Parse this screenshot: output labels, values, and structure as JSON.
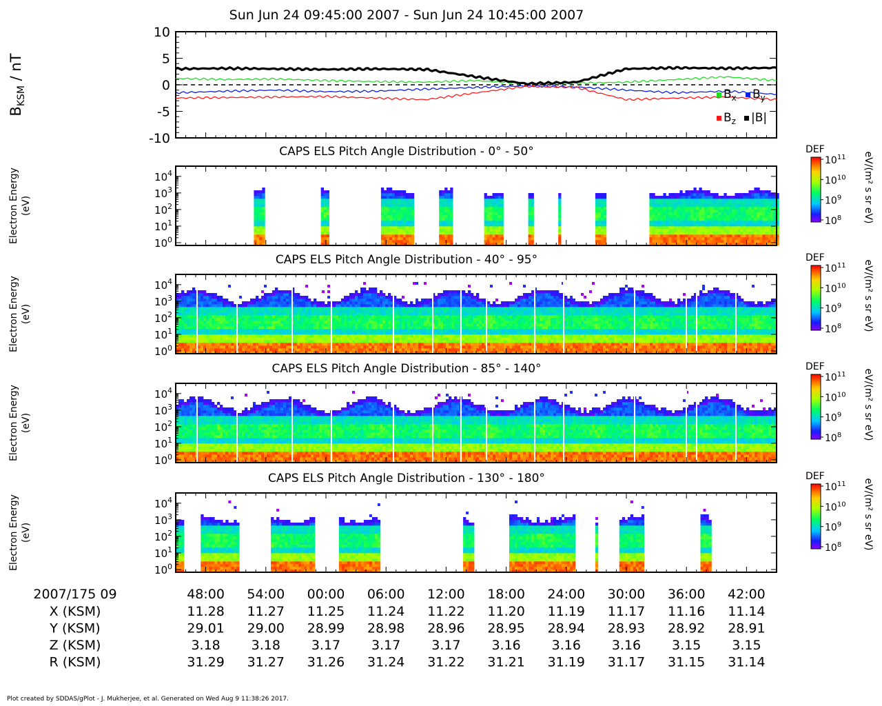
{
  "title": "Sun Jun 24 09:45:00 2007 - Sun Jun 24 10:45:00 2007",
  "footer": "Plot created by SDDAS/gPlot - J. Mukherjee, et al.  Generated on Wed Aug 9 11:38:26 2017.",
  "colors": {
    "bx": "#22dd22",
    "by": "#0a1ee6",
    "bz": "#ff1a1a",
    "bmag": "#000000"
  },
  "chart_data": [
    {
      "type": "line",
      "ylabel": "B_KSM / nT",
      "ylabel_main": "B",
      "ylabel_sub": "KSM",
      "ylabel_rest": " / nT",
      "ylim": [
        -10,
        10
      ],
      "yticks": [
        "10",
        "5",
        "0",
        "-5",
        "-10"
      ],
      "x_minutes": [
        0,
        5,
        10,
        15,
        20,
        25,
        30,
        35,
        40,
        45,
        50,
        55,
        60
      ],
      "reference_line": 0,
      "series": [
        {
          "name": "B_x",
          "legend_main": "B",
          "legend_sub": "x",
          "values": [
            1.2,
            1.0,
            1.1,
            0.8,
            0.6,
            0.5,
            0.8,
            0.2,
            0.3,
            0.5,
            1.0,
            1.5,
            0.8
          ]
        },
        {
          "name": "B_y",
          "legend_main": "B",
          "legend_sub": "y",
          "values": [
            -1.5,
            -1.2,
            -1.0,
            -1.3,
            -1.2,
            -0.8,
            -0.5,
            -0.2,
            -0.4,
            -1.0,
            -1.5,
            -1.2,
            -1.8
          ]
        },
        {
          "name": "B_z",
          "legend_main": "B",
          "legend_sub": "z",
          "values": [
            -2.5,
            -2.4,
            -2.3,
            -2.2,
            -2.5,
            -2.8,
            -1.5,
            -0.3,
            -0.5,
            -2.8,
            -2.5,
            -2.3,
            -2.8
          ]
        },
        {
          "name": "|B|",
          "legend_main": "|B|",
          "legend_sub": "",
          "values": [
            3.0,
            3.1,
            3.0,
            2.9,
            3.0,
            2.9,
            1.5,
            0.2,
            0.5,
            3.0,
            3.2,
            3.1,
            3.2
          ]
        }
      ]
    },
    {
      "type": "heatmap",
      "title": "CAPS ELS Pitch Angle Distribution - 0° - 50°",
      "ylabel_line1": "Electron Energy",
      "ylabel_line2": "(eV)",
      "yticks": [
        {
          "base": "10",
          "exp": "4"
        },
        {
          "base": "10",
          "exp": "3"
        },
        {
          "base": "10",
          "exp": "2"
        },
        {
          "base": "10",
          "exp": "1"
        },
        {
          "base": "10",
          "exp": "0"
        }
      ],
      "colorbar": {
        "label": "DEF",
        "ticks": [
          {
            "base": "10",
            "exp": "11"
          },
          {
            "base": "10",
            "exp": "10"
          },
          {
            "base": "10",
            "exp": "9"
          },
          {
            "base": "10",
            "exp": "8"
          }
        ],
        "units": "eV/(m² s sr eV)"
      },
      "data_intervals_minutes": [
        [
          7.8,
          8.8
        ],
        [
          14.5,
          15.2
        ],
        [
          20.5,
          23.8
        ],
        [
          26.3,
          27.5
        ],
        [
          30.8,
          32.5
        ],
        [
          35.2,
          35.7
        ],
        [
          38.2,
          38.4
        ],
        [
          41.9,
          42.9
        ],
        [
          47.3,
          60.0
        ]
      ]
    },
    {
      "type": "heatmap",
      "title": "CAPS ELS Pitch Angle Distribution - 40° - 95°",
      "ylabel_line1": "Electron Energy",
      "ylabel_line2": "(eV)",
      "yticks": [
        {
          "base": "10",
          "exp": "4"
        },
        {
          "base": "10",
          "exp": "3"
        },
        {
          "base": "10",
          "exp": "2"
        },
        {
          "base": "10",
          "exp": "1"
        },
        {
          "base": "10",
          "exp": "0"
        }
      ],
      "colorbar": {
        "label": "DEF",
        "ticks": [
          {
            "base": "10",
            "exp": "11"
          },
          {
            "base": "10",
            "exp": "10"
          },
          {
            "base": "10",
            "exp": "9"
          },
          {
            "base": "10",
            "exp": "8"
          }
        ],
        "units": "eV/(m² s sr eV)"
      },
      "data_intervals_minutes": [
        [
          0.0,
          60.0
        ]
      ]
    },
    {
      "type": "heatmap",
      "title": "CAPS ELS Pitch Angle Distribution - 85° - 140°",
      "ylabel_line1": "Electron Energy",
      "ylabel_line2": "(eV)",
      "yticks": [
        {
          "base": "10",
          "exp": "4"
        },
        {
          "base": "10",
          "exp": "3"
        },
        {
          "base": "10",
          "exp": "2"
        },
        {
          "base": "10",
          "exp": "1"
        },
        {
          "base": "10",
          "exp": "0"
        }
      ],
      "colorbar": {
        "label": "DEF",
        "ticks": [
          {
            "base": "10",
            "exp": "11"
          },
          {
            "base": "10",
            "exp": "10"
          },
          {
            "base": "10",
            "exp": "9"
          },
          {
            "base": "10",
            "exp": "8"
          }
        ],
        "units": "eV/(m² s sr eV)"
      },
      "data_intervals_minutes": [
        [
          0.0,
          60.0
        ]
      ]
    },
    {
      "type": "heatmap",
      "title": "CAPS ELS Pitch Angle Distribution - 130° - 180°",
      "ylabel_line1": "Electron Energy",
      "ylabel_line2": "(eV)",
      "yticks": [
        {
          "base": "10",
          "exp": "4"
        },
        {
          "base": "10",
          "exp": "3"
        },
        {
          "base": "10",
          "exp": "2"
        },
        {
          "base": "10",
          "exp": "1"
        },
        {
          "base": "10",
          "exp": "0"
        }
      ],
      "colorbar": {
        "label": "DEF",
        "ticks": [
          {
            "base": "10",
            "exp": "11"
          },
          {
            "base": "10",
            "exp": "10"
          },
          {
            "base": "10",
            "exp": "9"
          },
          {
            "base": "10",
            "exp": "8"
          }
        ],
        "units": "eV/(m² s sr eV)"
      },
      "data_intervals_minutes": [
        [
          0.0,
          0.6
        ],
        [
          2.5,
          6.2
        ],
        [
          9.5,
          13.8
        ],
        [
          16.3,
          20.2
        ],
        [
          28.7,
          29.6
        ],
        [
          33.3,
          39.8
        ],
        [
          41.9,
          42.1
        ],
        [
          44.3,
          46.6
        ],
        [
          52.4,
          53.5
        ]
      ]
    }
  ],
  "x_axis": {
    "date_label": "2007/175 09",
    "ticks": [
      "48:00",
      "54:00",
      "00:00",
      "06:00",
      "12:00",
      "18:00",
      "24:00",
      "30:00",
      "36:00",
      "42:00"
    ],
    "ephemeris": [
      {
        "label": "X (KSM)",
        "values": [
          "11.28",
          "11.27",
          "11.25",
          "11.24",
          "11.22",
          "11.20",
          "11.19",
          "11.17",
          "11.16",
          "11.14"
        ]
      },
      {
        "label": "Y (KSM)",
        "values": [
          "29.01",
          "29.00",
          "28.99",
          "28.98",
          "28.96",
          "28.95",
          "28.94",
          "28.93",
          "28.92",
          "28.91"
        ]
      },
      {
        "label": "Z (KSM)",
        "values": [
          "3.18",
          "3.18",
          "3.17",
          "3.17",
          "3.17",
          "3.16",
          "3.16",
          "3.16",
          "3.15",
          "3.15"
        ]
      },
      {
        "label": "R (KSM)",
        "values": [
          "31.29",
          "31.27",
          "31.26",
          "31.24",
          "31.22",
          "31.21",
          "31.19",
          "31.17",
          "31.15",
          "31.14"
        ]
      }
    ]
  }
}
